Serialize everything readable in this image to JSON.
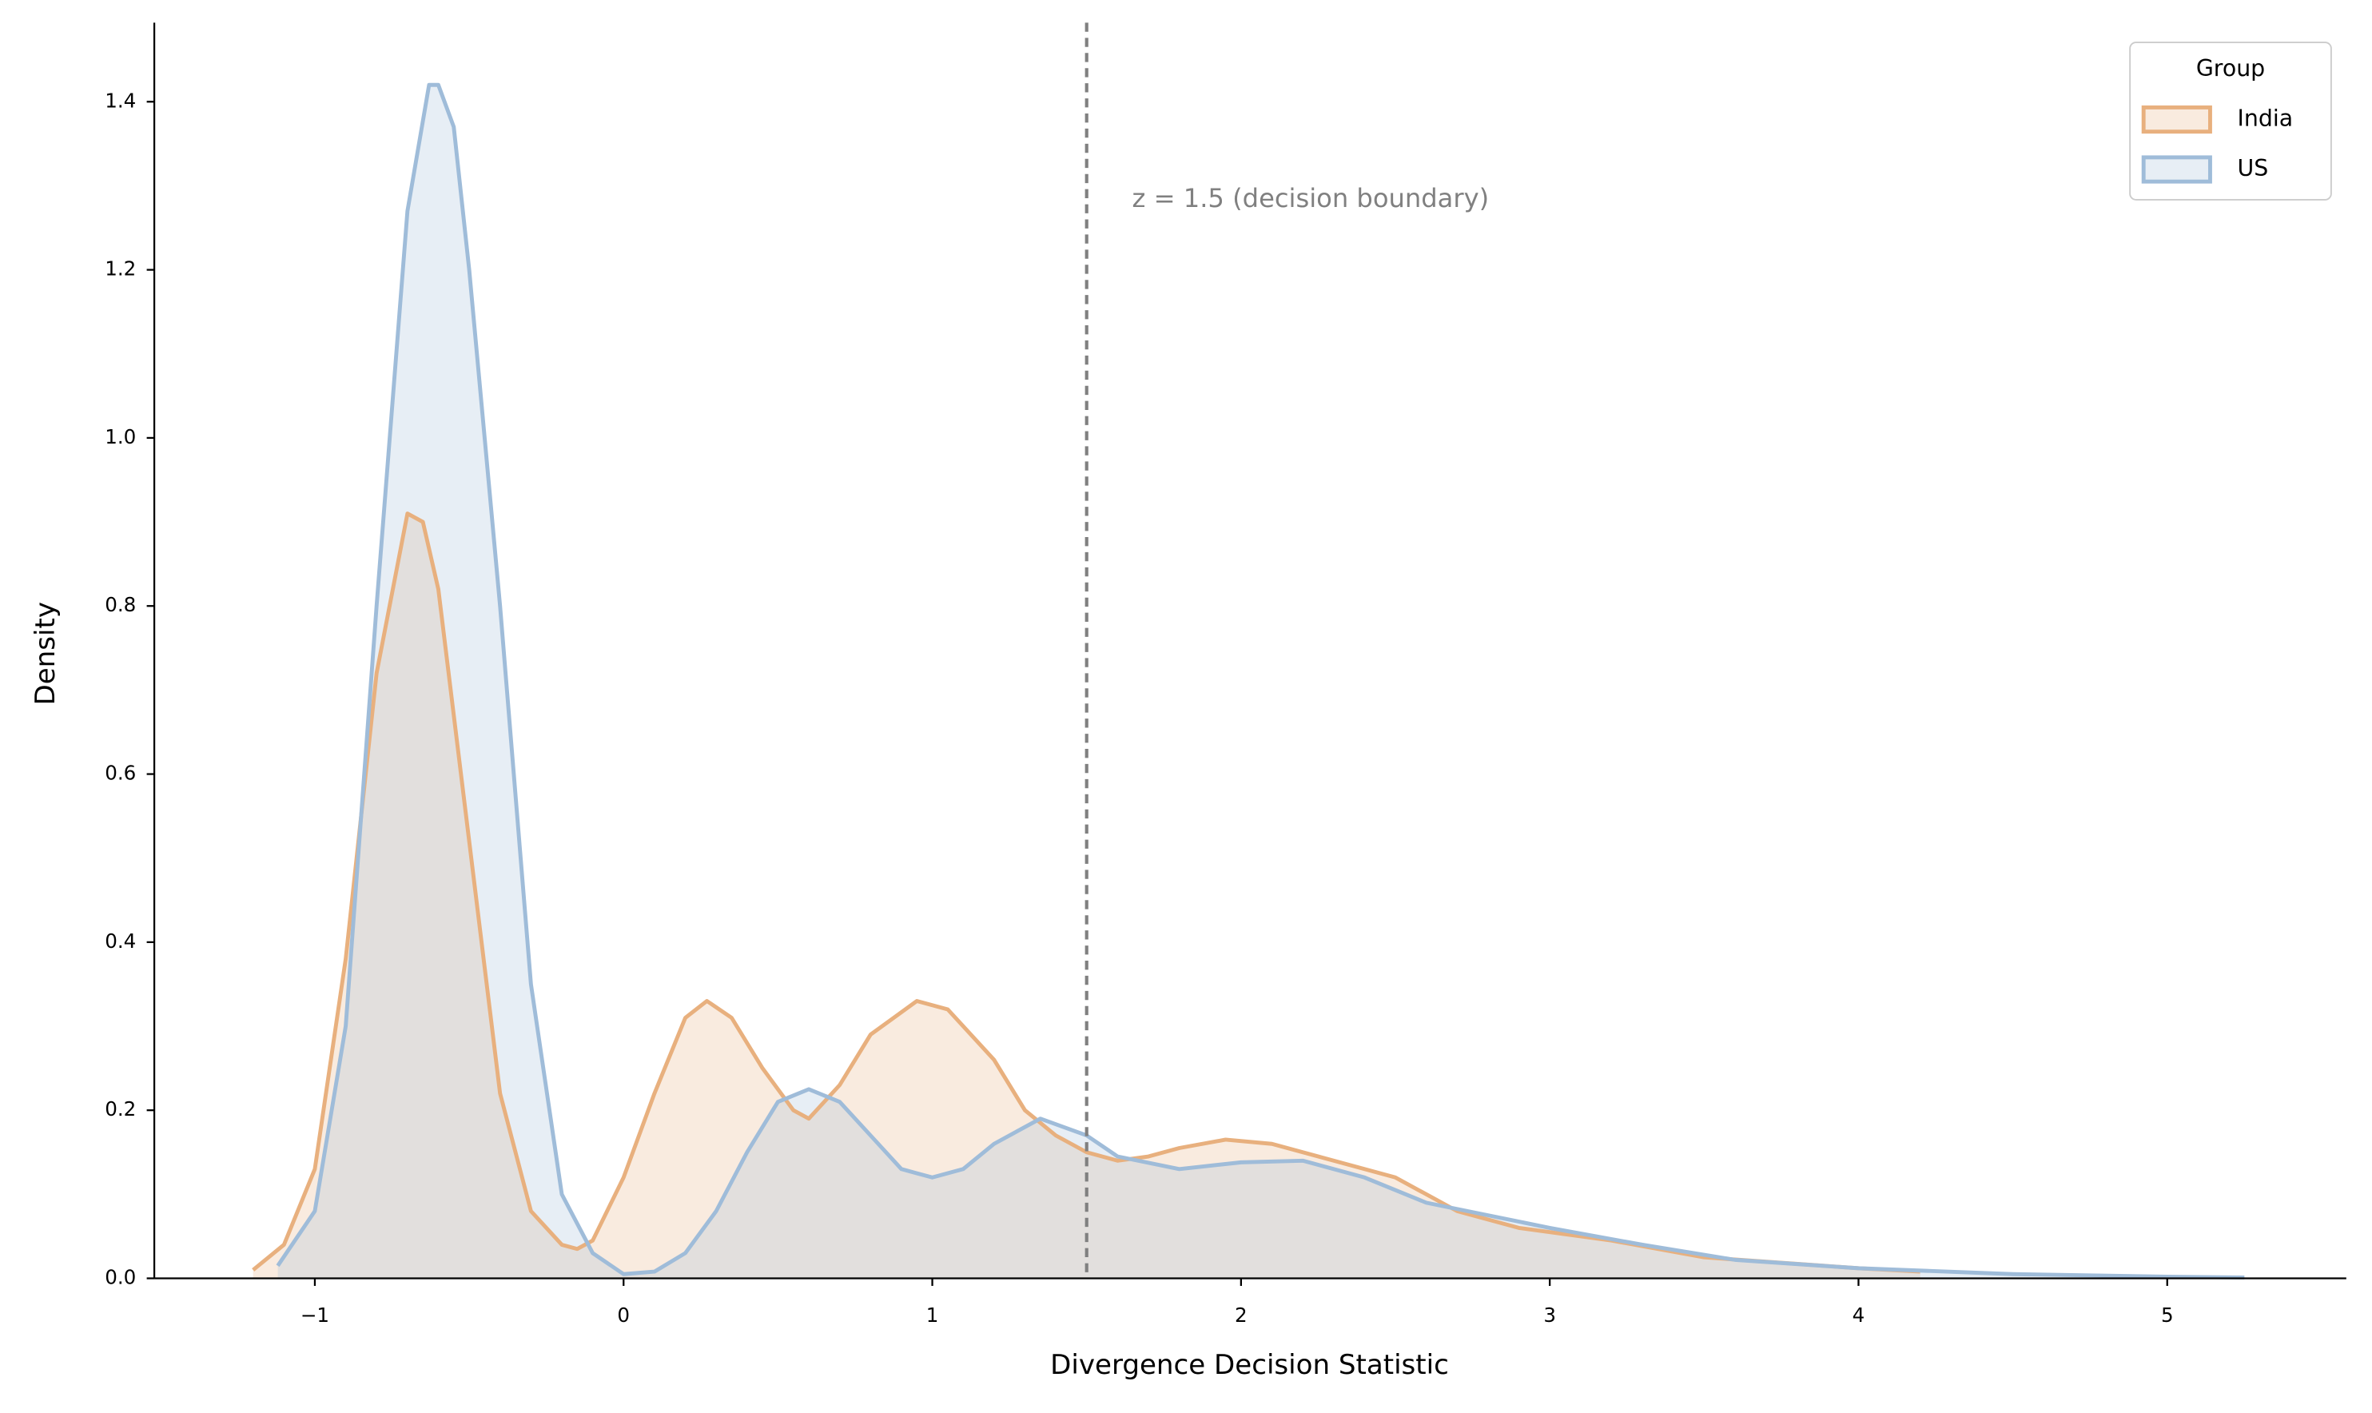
{
  "chart_data": {
    "type": "kde",
    "xlabel": "Divergence Decision Statistic",
    "ylabel": "Density",
    "xlim": [
      -1.52,
      5.58
    ],
    "ylim": [
      0,
      1.494
    ],
    "xticks": [
      {
        "value": -1,
        "label": "−1"
      },
      0,
      1,
      2,
      3,
      4,
      5
    ],
    "yticks": [
      {
        "value": 0,
        "label": "0.0"
      },
      0.2,
      0.4,
      0.6,
      0.8,
      {
        "value": 1,
        "label": "1.0"
      },
      1.2,
      1.4
    ],
    "vline": {
      "x": 1.5,
      "color": "#808080",
      "label": "z = 1.5 (decision boundary)"
    },
    "legend": {
      "title": "Group",
      "position": "upper right"
    },
    "fill_opacity": 0.25,
    "series": [
      {
        "name": "India",
        "color": "#e8b07e",
        "x": [
          -1.2,
          -1.1,
          -1.0,
          -0.9,
          -0.8,
          -0.7,
          -0.65,
          -0.6,
          -0.5,
          -0.4,
          -0.3,
          -0.2,
          -0.15,
          -0.1,
          0,
          0.1,
          0.2,
          0.27,
          0.35,
          0.45,
          0.55,
          0.6,
          0.7,
          0.8,
          0.95,
          1.05,
          1.2,
          1.3,
          1.4,
          1.5,
          1.6,
          1.7,
          1.8,
          1.95,
          2.1,
          2.3,
          2.5,
          2.7,
          2.9,
          3.2,
          3.5,
          4.0,
          4.2
        ],
        "values": [
          0.01,
          0.04,
          0.13,
          0.38,
          0.72,
          0.91,
          0.9,
          0.82,
          0.52,
          0.22,
          0.08,
          0.04,
          0.035,
          0.045,
          0.12,
          0.22,
          0.31,
          0.33,
          0.31,
          0.25,
          0.2,
          0.19,
          0.23,
          0.29,
          0.33,
          0.32,
          0.26,
          0.2,
          0.17,
          0.15,
          0.14,
          0.145,
          0.155,
          0.165,
          0.16,
          0.14,
          0.12,
          0.08,
          0.06,
          0.045,
          0.025,
          0.012,
          0.008
        ]
      },
      {
        "name": "US",
        "color": "#9fbcd9",
        "x": [
          -1.12,
          -1.0,
          -0.9,
          -0.8,
          -0.7,
          -0.63,
          -0.6,
          -0.55,
          -0.5,
          -0.4,
          -0.3,
          -0.2,
          -0.1,
          0,
          0.1,
          0.2,
          0.3,
          0.4,
          0.5,
          0.6,
          0.7,
          0.8,
          0.9,
          1.0,
          1.1,
          1.2,
          1.35,
          1.5,
          1.6,
          1.8,
          2.0,
          2.2,
          2.4,
          2.6,
          2.8,
          3.0,
          3.3,
          3.6,
          4.0,
          4.5,
          5.0,
          5.25
        ],
        "values": [
          0.015,
          0.08,
          0.3,
          0.8,
          1.27,
          1.42,
          1.42,
          1.37,
          1.2,
          0.8,
          0.35,
          0.1,
          0.03,
          0.005,
          0.008,
          0.03,
          0.08,
          0.15,
          0.21,
          0.225,
          0.21,
          0.17,
          0.13,
          0.12,
          0.13,
          0.16,
          0.19,
          0.17,
          0.145,
          0.13,
          0.138,
          0.14,
          0.12,
          0.09,
          0.075,
          0.06,
          0.04,
          0.022,
          0.012,
          0.005,
          0.002,
          0.001
        ]
      }
    ]
  }
}
